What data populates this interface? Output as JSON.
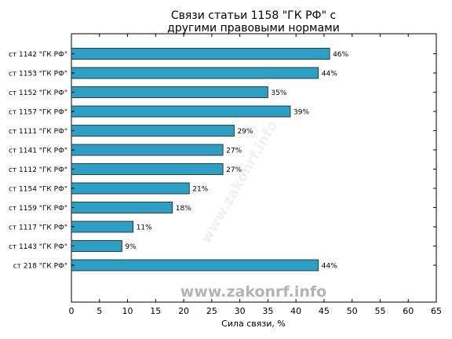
{
  "chart_data": {
    "type": "bar",
    "orientation": "horizontal",
    "title_lines": [
      "Связи статьи 1158 \"ГК РФ\" с",
      "другими правовыми нормами"
    ],
    "xlabel": "Сила связи, %",
    "ylabel": "",
    "xlim": [
      0,
      65
    ],
    "xticks": [
      0,
      5,
      10,
      15,
      20,
      25,
      30,
      35,
      40,
      45,
      50,
      55,
      60,
      65
    ],
    "grid": false,
    "bar_color": "#2b9fc4",
    "categories": [
      "ст 1142 \"ГК РФ\"",
      "ст 1153 \"ГК РФ\"",
      "ст 1152 \"ГК РФ\"",
      "ст 1157 \"ГК РФ\"",
      "ст 1111 \"ГК РФ\"",
      "ст 1141 \"ГК РФ\"",
      "ст 1112 \"ГК РФ\"",
      "ст 1154 \"ГК РФ\"",
      "ст 1159 \"ГК РФ\"",
      "ст 1117 \"ГК РФ\"",
      "ст 1143 \"ГК РФ\"",
      "ст 218 \"ГК РФ\""
    ],
    "values": [
      46,
      44,
      35,
      39,
      29,
      27,
      27,
      21,
      18,
      11,
      9,
      44
    ],
    "value_labels": [
      "46%",
      "44%",
      "35%",
      "39%",
      "29%",
      "27%",
      "27%",
      "21%",
      "18%",
      "11%",
      "9%",
      "44%"
    ]
  },
  "watermark": "www.zakonrf.info",
  "diagonal_watermark": "www.zakonrf.info"
}
